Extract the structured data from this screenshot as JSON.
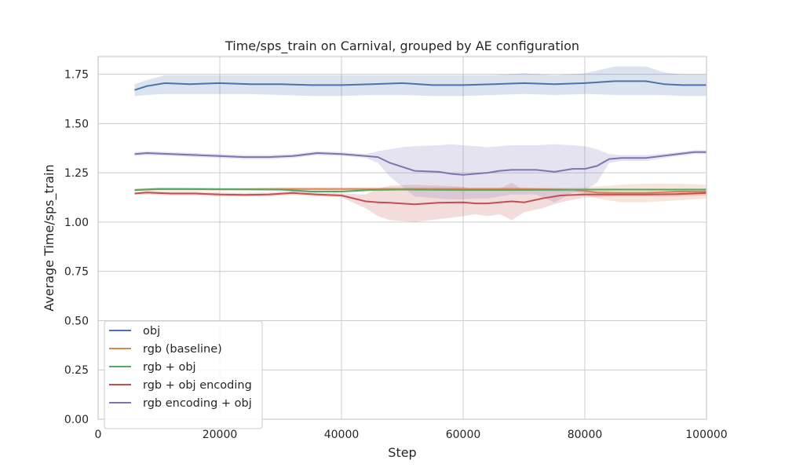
{
  "chart_data": {
    "type": "line",
    "title": "Time/sps_train on Carnival, grouped by AE configuration",
    "xlabel": "Step",
    "ylabel": "Average Time/sps_train",
    "xlim": [
      0,
      100000
    ],
    "ylim": [
      0,
      1.84
    ],
    "x_ticks": [
      0,
      20000,
      40000,
      60000,
      80000,
      100000
    ],
    "x_tick_labels": [
      "0",
      "20000",
      "40000",
      "60000",
      "80000",
      "100000"
    ],
    "y_ticks": [
      0.0,
      0.25,
      0.5,
      0.75,
      1.0,
      1.25,
      1.5,
      1.75
    ],
    "y_tick_labels": [
      "0.00",
      "0.25",
      "0.50",
      "0.75",
      "1.00",
      "1.25",
      "1.50",
      "1.75"
    ],
    "grid": true,
    "legend_position": "lower-left",
    "series": [
      {
        "name": "obj",
        "color": "#4c72b0",
        "x": [
          6000,
          8000,
          11000,
          15000,
          20000,
          25000,
          30000,
          35000,
          40000,
          45000,
          50000,
          55000,
          60000,
          65000,
          70000,
          75000,
          80000,
          85000,
          90000,
          93000,
          96000,
          100000
        ],
        "values": [
          1.67,
          1.69,
          1.705,
          1.7,
          1.705,
          1.7,
          1.7,
          1.695,
          1.695,
          1.7,
          1.705,
          1.695,
          1.695,
          1.7,
          1.705,
          1.7,
          1.705,
          1.715,
          1.715,
          1.7,
          1.695,
          1.695
        ],
        "lower": [
          1.64,
          1.645,
          1.65,
          1.65,
          1.65,
          1.65,
          1.645,
          1.64,
          1.64,
          1.645,
          1.645,
          1.64,
          1.64,
          1.645,
          1.65,
          1.645,
          1.65,
          1.645,
          1.645,
          1.645,
          1.64,
          1.64
        ],
        "upper": [
          1.7,
          1.72,
          1.745,
          1.745,
          1.745,
          1.745,
          1.745,
          1.745,
          1.745,
          1.745,
          1.745,
          1.745,
          1.745,
          1.745,
          1.755,
          1.745,
          1.755,
          1.79,
          1.79,
          1.76,
          1.75,
          1.75
        ]
      },
      {
        "name": "rgb (baseline)",
        "color": "#dd8452",
        "x": [
          6000,
          10000,
          20000,
          30000,
          40000,
          50000,
          60000,
          70000,
          78000,
          82000,
          86000,
          90000,
          95000,
          100000
        ],
        "values": [
          1.162,
          1.168,
          1.166,
          1.168,
          1.168,
          1.168,
          1.168,
          1.168,
          1.165,
          1.15,
          1.148,
          1.148,
          1.155,
          1.155
        ],
        "lower": [
          1.155,
          1.16,
          1.16,
          1.16,
          1.16,
          1.16,
          1.16,
          1.16,
          1.155,
          1.12,
          1.1,
          1.1,
          1.11,
          1.12
        ],
        "upper": [
          1.17,
          1.176,
          1.174,
          1.176,
          1.176,
          1.176,
          1.176,
          1.176,
          1.175,
          1.18,
          1.19,
          1.195,
          1.195,
          1.19
        ]
      },
      {
        "name": "rgb + obj",
        "color": "#55a868",
        "x": [
          6000,
          10000,
          20000,
          30000,
          35000,
          40000,
          45000,
          50000,
          60000,
          70000,
          80000,
          90000,
          100000
        ],
        "values": [
          1.163,
          1.168,
          1.167,
          1.165,
          1.155,
          1.155,
          1.163,
          1.165,
          1.163,
          1.163,
          1.165,
          1.165,
          1.165
        ],
        "lower": [
          1.158,
          1.162,
          1.162,
          1.16,
          1.15,
          1.15,
          1.158,
          1.16,
          1.158,
          1.158,
          1.16,
          1.16,
          1.16
        ],
        "upper": [
          1.168,
          1.173,
          1.172,
          1.17,
          1.16,
          1.16,
          1.168,
          1.17,
          1.168,
          1.168,
          1.17,
          1.17,
          1.17
        ]
      },
      {
        "name": "rgb + obj encoding",
        "color": "#c44e52",
        "x": [
          6000,
          8000,
          12000,
          16000,
          20000,
          24000,
          28000,
          32000,
          36000,
          40000,
          44000,
          46000,
          48000,
          52000,
          56000,
          60000,
          62000,
          64000,
          66000,
          68000,
          70000,
          73000,
          76000,
          80000,
          85000,
          90000,
          95000,
          100000
        ],
        "values": [
          1.145,
          1.15,
          1.145,
          1.145,
          1.14,
          1.138,
          1.14,
          1.148,
          1.14,
          1.135,
          1.105,
          1.1,
          1.098,
          1.09,
          1.098,
          1.1,
          1.095,
          1.095,
          1.1,
          1.105,
          1.1,
          1.12,
          1.135,
          1.14,
          1.14,
          1.14,
          1.142,
          1.148
        ],
        "lower": [
          1.14,
          1.14,
          1.135,
          1.135,
          1.13,
          1.13,
          1.13,
          1.138,
          1.13,
          1.125,
          1.07,
          1.03,
          1.01,
          1.0,
          1.015,
          1.03,
          1.04,
          1.03,
          1.04,
          1.01,
          1.05,
          1.07,
          1.1,
          1.125,
          1.13,
          1.13,
          1.13,
          1.135
        ],
        "upper": [
          1.15,
          1.158,
          1.155,
          1.155,
          1.15,
          1.148,
          1.15,
          1.158,
          1.15,
          1.145,
          1.14,
          1.17,
          1.185,
          1.19,
          1.185,
          1.18,
          1.16,
          1.17,
          1.17,
          1.2,
          1.16,
          1.16,
          1.17,
          1.16,
          1.155,
          1.155,
          1.155,
          1.16
        ]
      },
      {
        "name": "rgb encoding + obj",
        "color": "#8172b3",
        "x": [
          6000,
          8000,
          12000,
          16000,
          20000,
          24000,
          28000,
          32000,
          36000,
          40000,
          44000,
          46000,
          48000,
          50000,
          52000,
          56000,
          58000,
          60000,
          62000,
          64000,
          66000,
          68000,
          72000,
          75000,
          78000,
          80000,
          82000,
          84000,
          86000,
          90000,
          94000,
          98000,
          100000
        ],
        "values": [
          1.345,
          1.35,
          1.345,
          1.34,
          1.335,
          1.33,
          1.33,
          1.335,
          1.35,
          1.345,
          1.335,
          1.33,
          1.3,
          1.28,
          1.26,
          1.255,
          1.245,
          1.24,
          1.245,
          1.25,
          1.26,
          1.265,
          1.265,
          1.255,
          1.27,
          1.27,
          1.285,
          1.32,
          1.325,
          1.325,
          1.34,
          1.355,
          1.355
        ],
        "lower": [
          1.335,
          1.34,
          1.335,
          1.33,
          1.325,
          1.32,
          1.32,
          1.325,
          1.34,
          1.335,
          1.325,
          1.3,
          1.23,
          1.18,
          1.13,
          1.12,
          1.115,
          1.115,
          1.12,
          1.12,
          1.13,
          1.14,
          1.14,
          1.1,
          1.15,
          1.16,
          1.2,
          1.3,
          1.31,
          1.31,
          1.33,
          1.345,
          1.345
        ],
        "upper": [
          1.355,
          1.36,
          1.355,
          1.35,
          1.345,
          1.34,
          1.34,
          1.345,
          1.36,
          1.355,
          1.345,
          1.36,
          1.37,
          1.38,
          1.385,
          1.39,
          1.395,
          1.39,
          1.385,
          1.38,
          1.385,
          1.39,
          1.39,
          1.395,
          1.39,
          1.385,
          1.37,
          1.345,
          1.34,
          1.34,
          1.35,
          1.365,
          1.365
        ]
      }
    ]
  }
}
